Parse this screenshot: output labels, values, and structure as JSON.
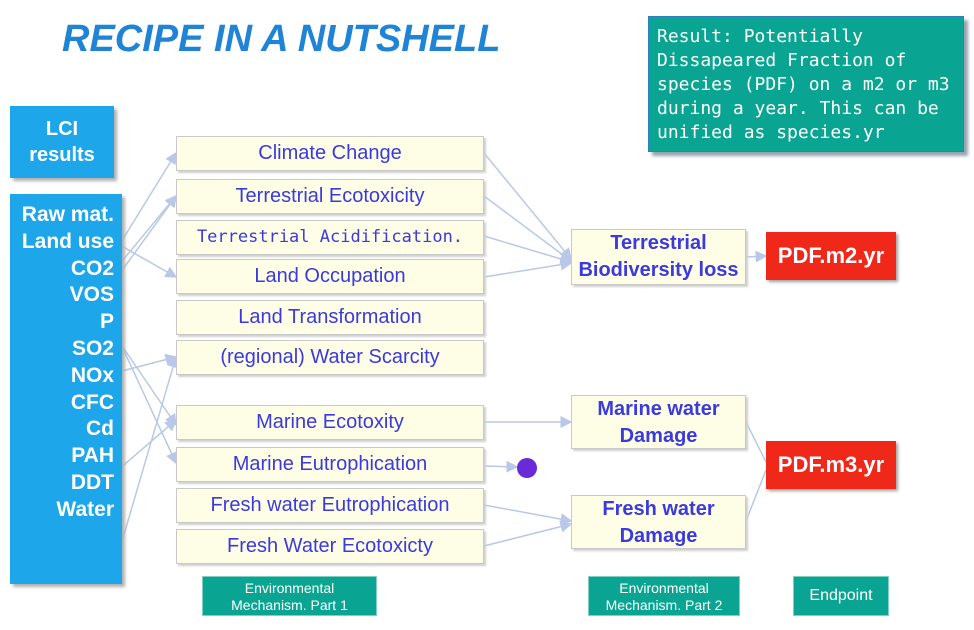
{
  "title": "RECIPE IN A NUTSHELL",
  "result_note": "Result: Potentially Dissapeared Fraction of species (PDF) on a m2 or m3 during a year. This can be unified as species.yr",
  "lci_results": {
    "line1": "LCI",
    "line2": "results"
  },
  "inputs": [
    "Raw mat.",
    "Land use",
    "CO2",
    "VOS",
    "P",
    "SO2",
    "NOx",
    "CFC",
    "Cd",
    "PAH",
    "DDT",
    "Water"
  ],
  "midpoints": [
    "Climate Change",
    "Terrestrial Ecotoxicity",
    "Terrestrial Acidification.",
    "Land Occupation",
    "Land Transformation",
    "(regional) Water Scarcity",
    "Marine Ecotoxity",
    "Marine Eutrophication",
    "Fresh water Eutrophication",
    "Fresh Water Ecotoxicty"
  ],
  "damages": {
    "terrestrial": {
      "line1": "Terrestrial",
      "line2": "Biodiversity loss"
    },
    "marine": {
      "line1": "Marine water",
      "line2": "Damage"
    },
    "fresh": {
      "line1": "Fresh water",
      "line2": "Damage"
    }
  },
  "endpoints": {
    "m2": "PDF.m2.yr",
    "m3": "PDF.m3.yr"
  },
  "footer_labels": {
    "part1": {
      "line1": "Environmental",
      "line2": "Mechanism. Part 1"
    },
    "part2": {
      "line1": "Environmental",
      "line2": "Mechanism. Part 2"
    },
    "endpoint": "Endpoint"
  },
  "colors": {
    "title": "#1f84d6",
    "teal": "#0aa592",
    "blue_box": "#1ea6ea",
    "red_box": "#f0281a",
    "midpoint_text": "#3a3adf",
    "dot": "#6a2ad8"
  }
}
